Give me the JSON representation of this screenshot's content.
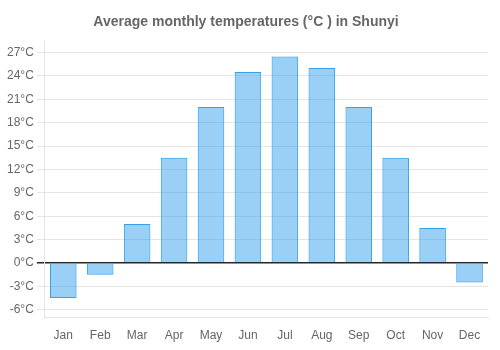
{
  "chart_data": {
    "type": "bar",
    "title": "Average monthly temperatures (°C ) in Shunyi",
    "categories": [
      "Jan",
      "Feb",
      "Mar",
      "Apr",
      "May",
      "Jun",
      "Jul",
      "Aug",
      "Sep",
      "Oct",
      "Nov",
      "Dec"
    ],
    "values": [
      -4.5,
      -1.5,
      5.0,
      13.5,
      20.0,
      24.5,
      26.5,
      25.0,
      20.0,
      13.5,
      4.5,
      -2.5
    ],
    "ylim": [
      -7,
      28.5
    ],
    "yticks": [
      {
        "value": -6,
        "label": "-6°C"
      },
      {
        "value": -3,
        "label": "-3°C"
      },
      {
        "value": 0,
        "label": "0°C"
      },
      {
        "value": 3,
        "label": "3°C"
      },
      {
        "value": 6,
        "label": "6°C"
      },
      {
        "value": 9,
        "label": "9°C"
      },
      {
        "value": 12,
        "label": "12°C"
      },
      {
        "value": 15,
        "label": "15°C"
      },
      {
        "value": 18,
        "label": "18°C"
      },
      {
        "value": 21,
        "label": "21°C"
      },
      {
        "value": 24,
        "label": "24°C"
      },
      {
        "value": 27,
        "label": "27°C"
      }
    ],
    "grid": true
  }
}
